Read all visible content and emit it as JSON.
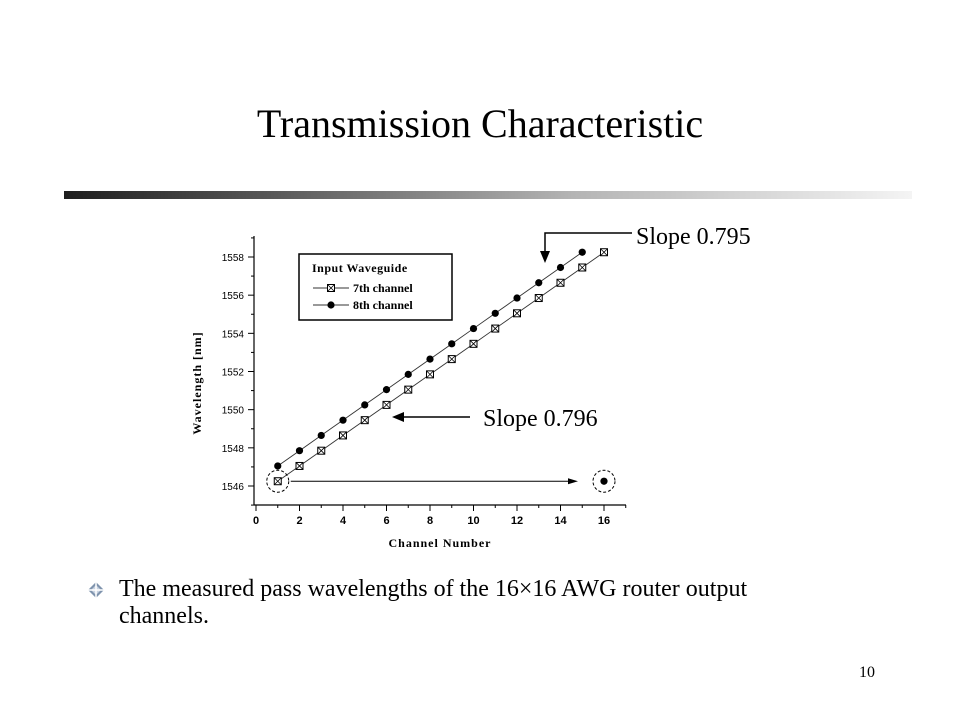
{
  "slide": {
    "title": "Transmission Characteristic",
    "bullet": "The measured pass wavelengths of the 16×16 AWG router output channels.",
    "page_number": "10"
  },
  "chart_data": {
    "type": "scatter",
    "xlabel": "Channel Number",
    "ylabel": "Wavelength [nm]",
    "xlim": [
      0,
      17
    ],
    "ylim": [
      1545,
      1559
    ],
    "x_ticks": [
      0,
      2,
      4,
      6,
      8,
      10,
      12,
      14,
      16
    ],
    "y_ticks": [
      1546,
      1548,
      1550,
      1552,
      1554,
      1556,
      1558
    ],
    "grid": false,
    "legend": {
      "title": "Input Waveguide",
      "placement": "top-left",
      "entries": [
        "7th channel",
        "8th channel"
      ]
    },
    "series": [
      {
        "name": "7th channel",
        "marker": "crossed-square",
        "color": "#000000",
        "x": [
          1,
          2,
          3,
          4,
          5,
          6,
          7,
          8,
          9,
          10,
          11,
          12,
          13,
          14,
          15,
          16
        ],
        "y": [
          1546.25,
          1547.05,
          1547.85,
          1548.65,
          1549.45,
          1550.25,
          1551.05,
          1551.85,
          1552.65,
          1553.45,
          1554.25,
          1555.05,
          1555.85,
          1556.65,
          1557.45,
          1558.25
        ]
      },
      {
        "name": "8th channel",
        "marker": "filled-circle",
        "color": "#000000",
        "x": [
          1,
          2,
          3,
          4,
          5,
          6,
          7,
          8,
          9,
          10,
          11,
          12,
          13,
          14,
          15,
          16
        ],
        "y": [
          1547.05,
          1547.85,
          1548.65,
          1549.45,
          1550.25,
          1551.05,
          1551.85,
          1552.65,
          1553.45,
          1554.25,
          1555.05,
          1555.85,
          1556.65,
          1557.45,
          1558.25,
          1546.25
        ]
      }
    ],
    "annotations": [
      {
        "text": "Slope 0.795",
        "series": "8th channel"
      },
      {
        "text": "Slope 0.796",
        "series": "7th channel"
      }
    ]
  }
}
